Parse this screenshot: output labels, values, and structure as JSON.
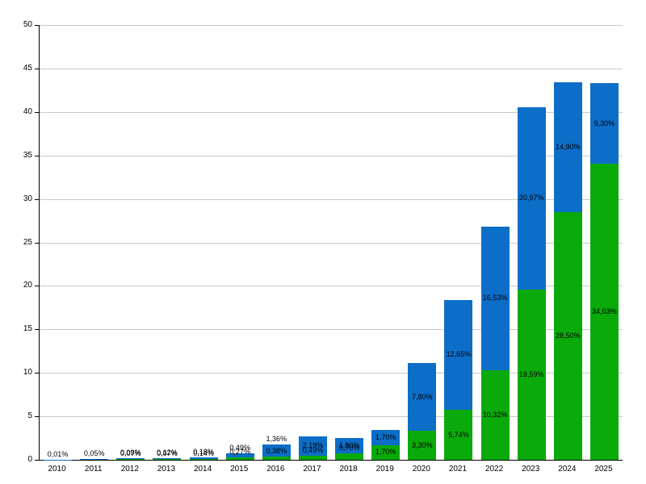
{
  "page": {
    "background": "#ffffff",
    "title": ""
  },
  "chart_data": {
    "type": "bar",
    "stacked": true,
    "title": "",
    "xlabel": "",
    "ylabel": "",
    "legend": "none",
    "grid": true,
    "ylim": [
      0,
      50
    ],
    "ytick_step": 5,
    "yticks": [
      "0",
      "5",
      "10",
      "15",
      "20",
      "25",
      "30",
      "35",
      "40",
      "45",
      "50"
    ],
    "categories": [
      "2010",
      "2011",
      "2012",
      "2013",
      "2014",
      "2015",
      "2016",
      "2017",
      "2018",
      "2019",
      "2020",
      "2021",
      "2022",
      "2023",
      "2024",
      "2025"
    ],
    "series": [
      {
        "name": "green",
        "color": "#0baa0b",
        "values": [
          0,
          0,
          0.07,
          0.07,
          0.14,
          0.27,
          0.38,
          0.49,
          0.7,
          1.7,
          3.3,
          5.74,
          10.32,
          19.59,
          28.5,
          34.03
        ],
        "labels": [
          "",
          "",
          "0,07%",
          "0,07%",
          "0,14%",
          "0,27%",
          "0,38%",
          "0,49%",
          "0,70%",
          "1,70%",
          "3,30%",
          "5,74%",
          "10,32%",
          "19,59%",
          "28,50%",
          "34,03%"
        ]
      },
      {
        "name": "blue",
        "color": "#0d6ec8",
        "values": [
          0.01,
          0.05,
          0.09,
          0.12,
          0.18,
          0.49,
          1.36,
          2.19,
          1.8,
          1.7,
          7.8,
          12.65,
          16.53,
          20.97,
          14.9,
          9.3
        ],
        "labels": [
          "0,01%",
          "0,05%",
          "0,09%",
          "0,12%",
          "0,18%",
          "0,49%",
          "1,36%",
          "2,19%",
          "1,80%",
          "1,70%",
          "7,80%",
          "12,65%",
          "16,53%",
          "20,97%",
          "14,90%",
          "9,30%"
        ]
      }
    ],
    "axis_color": "#000000",
    "gridline_color": "#c9c9c9",
    "label_color": "#000000"
  }
}
